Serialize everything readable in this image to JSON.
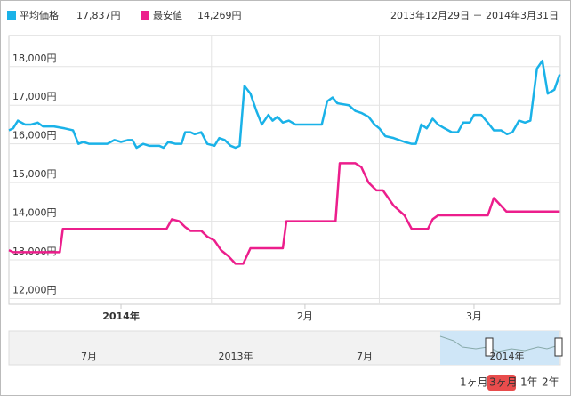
{
  "chart_data": {
    "type": "line",
    "period": "2013年12月29日 － 2014年3月31日",
    "series": [
      {
        "name": "平均価格",
        "current": "17,837円",
        "color": "#1ab2e8",
        "x": [
          0,
          0.7,
          1.5,
          2.7,
          3.7,
          4.8,
          5.7,
          7.5,
          9.3,
          10.7,
          11.6,
          12.4,
          13.4,
          16.4,
          17.6,
          18.7,
          19.9,
          20.6,
          21.3,
          22.4,
          23.4,
          25.1,
          25.8,
          26.6,
          27.8,
          28.8,
          29.4,
          30.3,
          31.0,
          32.1,
          33.1,
          34.3,
          35.1,
          36.0,
          37.0,
          37.8,
          38.5,
          39.3,
          40.3,
          41.3,
          42.2,
          43.3,
          44.0,
          44.8,
          45.7,
          46.7,
          47.8,
          52.2,
          53.1,
          54.0,
          54.8,
          56.7,
          57.8,
          58.8,
          60.0,
          61.0,
          61.8,
          62.8,
          64.2,
          66.0,
          67.2,
          67.9,
          68.8,
          69.7,
          70.7,
          71.6,
          72.7,
          73.9,
          74.9,
          75.8,
          76.9,
          77.6,
          78.8,
          79.9,
          80.9,
          82.1,
          83.1,
          84.0,
          85.1,
          86.1,
          87.0,
          88.1,
          89.0,
          89.9,
          91.0,
          91.9
        ],
        "values": [
          16350,
          16400,
          16600,
          16500,
          16500,
          16550,
          16450,
          16450,
          16400,
          16350,
          16000,
          16050,
          16000,
          16000,
          16100,
          16050,
          16100,
          16100,
          15900,
          16000,
          15950,
          15950,
          15900,
          16050,
          16000,
          16000,
          16300,
          16300,
          16250,
          16300,
          16000,
          15950,
          16150,
          16100,
          15950,
          15900,
          15950,
          17500,
          17300,
          16850,
          16500,
          16750,
          16600,
          16700,
          16550,
          16600,
          16500,
          16500,
          17100,
          17200,
          17050,
          17000,
          16850,
          16800,
          16700,
          16500,
          16400,
          16200,
          16150,
          16050,
          16000,
          16000,
          16500,
          16400,
          16650,
          16500,
          16400,
          16300,
          16300,
          16550,
          16550,
          16750,
          16750,
          16550,
          16350,
          16350,
          16250,
          16300,
          16600,
          16550,
          16600,
          17950,
          18150,
          17300,
          17400,
          17800
        ]
      },
      {
        "name": "最安値",
        "current": "14,269円",
        "color": "#ec1e8c",
        "x": [
          0,
          0.7,
          8.5,
          9.0,
          26.3,
          27.2,
          28.4,
          29.4,
          30.3,
          32.1,
          33.1,
          34.3,
          35.4,
          36.6,
          37.8,
          39.1,
          40.3,
          45.7,
          46.3,
          54.5,
          55.2,
          57.8,
          58.8,
          60.0,
          61.3,
          62.4,
          63.3,
          64.2,
          66.0,
          67.2,
          69.9,
          70.7,
          71.6,
          79.9,
          80.9,
          81.8,
          83.0,
          91.9
        ],
        "values": [
          13250,
          13200,
          13200,
          13800,
          13800,
          14050,
          14000,
          13850,
          13750,
          13750,
          13600,
          13500,
          13250,
          13100,
          12900,
          12900,
          13300,
          13300,
          14000,
          14000,
          15500,
          15500,
          15400,
          15000,
          14800,
          14800,
          14600,
          14400,
          14150,
          13800,
          13800,
          14050,
          14150,
          14150,
          14600,
          14450,
          14250,
          14250
        ]
      }
    ],
    "xlim": [
      0,
      92
    ],
    "xticks": [
      {
        "value": 18.7,
        "label": "2014年"
      },
      {
        "value": 49.4,
        "label": "2月"
      },
      {
        "value": 77.6,
        "label": "3月"
      }
    ],
    "xgrid": [
      33.8,
      61.8
    ],
    "ylim": [
      11850,
      18800
    ],
    "yticks": [
      {
        "value": 12000,
        "label": "12,000円"
      },
      {
        "value": 13000,
        "label": "13,000円"
      },
      {
        "value": 14000,
        "label": "14,000円"
      },
      {
        "value": 15000,
        "label": "15,000円"
      },
      {
        "value": 16000,
        "label": "16,000円"
      },
      {
        "value": 17000,
        "label": "17,000円"
      },
      {
        "value": 18000,
        "label": "18,000円"
      }
    ],
    "grid": true,
    "navigator": {
      "labels": [
        "7月",
        "2013年",
        "7月",
        "2014年"
      ]
    },
    "range_buttons": [
      "1ヶ月",
      "3ヶ月",
      "1年",
      "2年"
    ],
    "active_range": 1
  }
}
